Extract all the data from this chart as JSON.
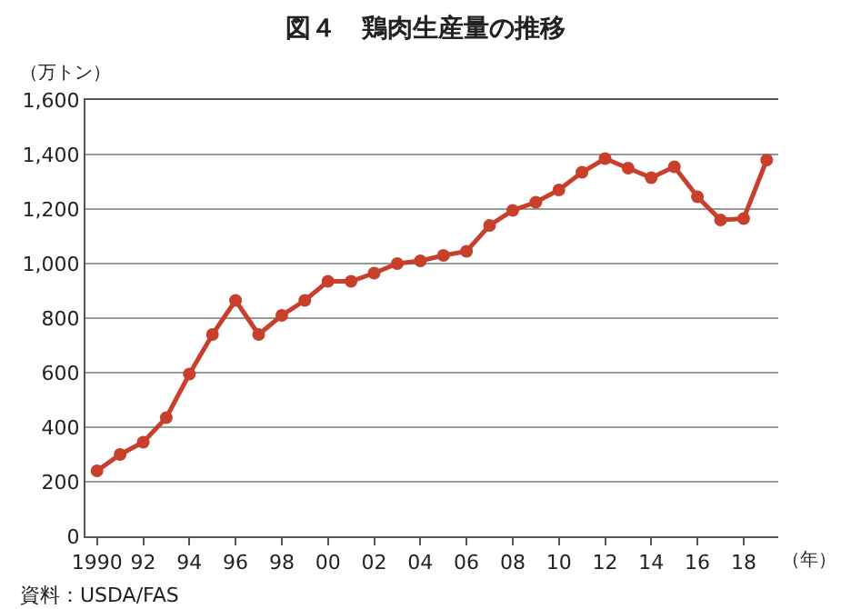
{
  "chart_data": {
    "type": "line",
    "title": "図４　鶏肉生産量の推移",
    "ylabel": "（万トン）",
    "xlabel": "（年）",
    "x": [
      1990,
      1991,
      1992,
      1993,
      1994,
      1995,
      1996,
      1997,
      1998,
      1999,
      2000,
      2001,
      2002,
      2003,
      2004,
      2005,
      2006,
      2007,
      2008,
      2009,
      2010,
      2011,
      2012,
      2013,
      2014,
      2015,
      2016,
      2017,
      2018,
      2019
    ],
    "series": [
      {
        "color": "#c8402c",
        "values": [
          240,
          300,
          345,
          435,
          595,
          740,
          865,
          740,
          810,
          865,
          935,
          935,
          965,
          1000,
          1010,
          1030,
          1045,
          1140,
          1195,
          1225,
          1270,
          1335,
          1385,
          1350,
          1315,
          1355,
          1245,
          1160,
          1165,
          1380
        ]
      }
    ],
    "xlim": [
      1989.5,
      2019.5
    ],
    "xticks": [
      {
        "value": 1990,
        "label": "1990"
      },
      {
        "value": 1992,
        "label": "92"
      },
      {
        "value": 1994,
        "label": "94"
      },
      {
        "value": 1996,
        "label": "96"
      },
      {
        "value": 1998,
        "label": "98"
      },
      {
        "value": 2000,
        "label": "00"
      },
      {
        "value": 2002,
        "label": "02"
      },
      {
        "value": 2004,
        "label": "04"
      },
      {
        "value": 2006,
        "label": "06"
      },
      {
        "value": 2008,
        "label": "08"
      },
      {
        "value": 2010,
        "label": "10"
      },
      {
        "value": 2012,
        "label": "12"
      },
      {
        "value": 2014,
        "label": "14"
      },
      {
        "value": 2016,
        "label": "16"
      },
      {
        "value": 2018,
        "label": "18"
      }
    ],
    "ylim": [
      0,
      1600
    ],
    "yticks": [
      0,
      200,
      400,
      600,
      800,
      {
        "value": 1000,
        "label": "1,000"
      },
      {
        "value": 1200,
        "label": "1,200"
      },
      {
        "value": 1400,
        "label": "1,400"
      },
      {
        "value": 1600,
        "label": "1,600"
      }
    ],
    "grid": "y",
    "marker": "circle",
    "line_style": "solid",
    "legend": false,
    "annotations": [
      "資料：USDA/FAS"
    ]
  }
}
